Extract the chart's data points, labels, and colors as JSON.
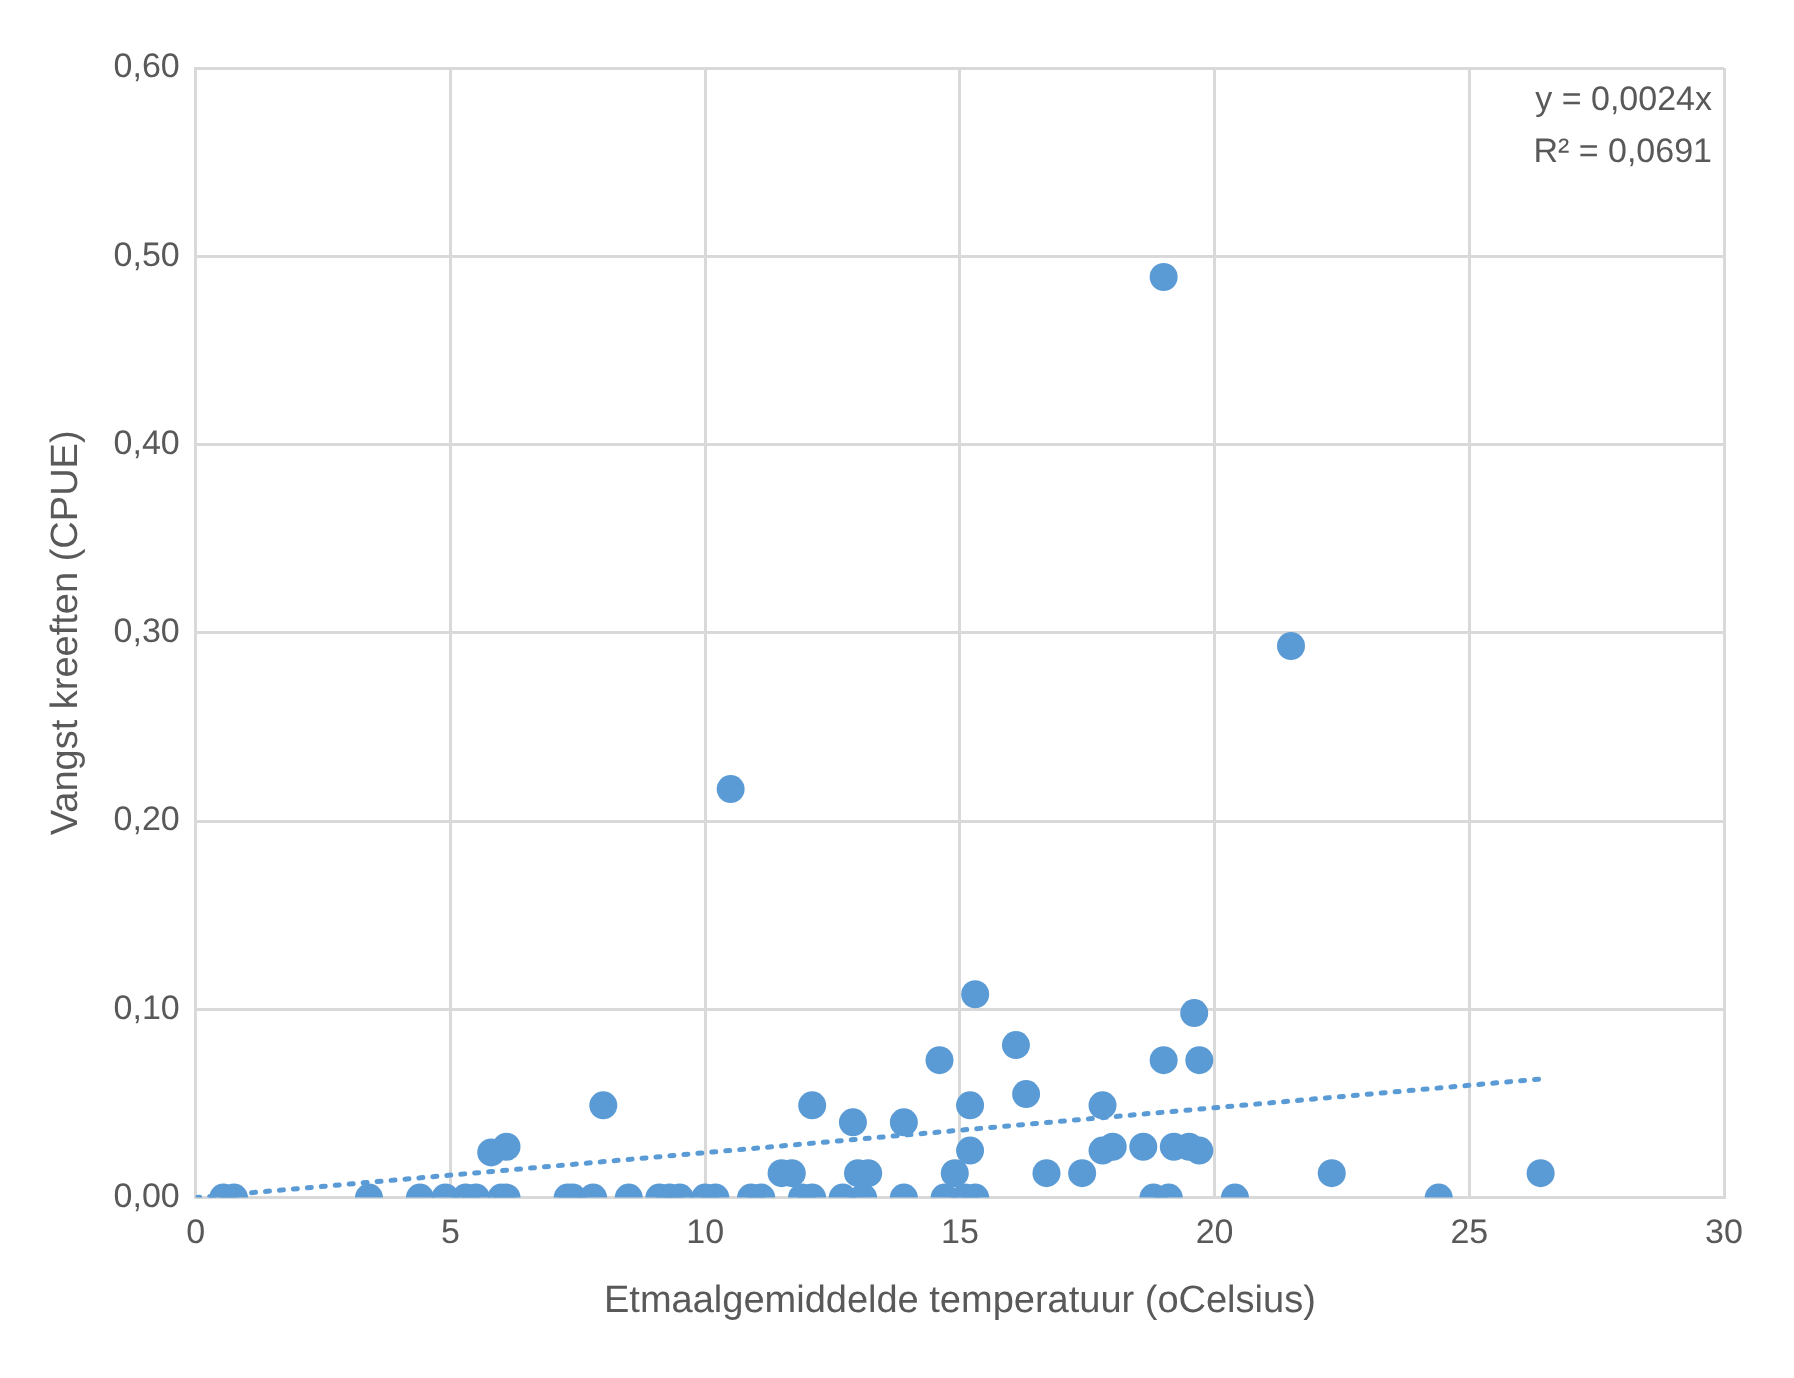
{
  "chart_data": {
    "type": "scatter",
    "xlabel": "Etmaalgemiddelde temperatuur (oCelsius)",
    "ylabel": "Vangst kreeften (CPUE)",
    "annotations": [
      "y = 0,0024x",
      "R² = 0,0691"
    ],
    "xlim": [
      0,
      30
    ],
    "xticks": [
      0,
      5,
      10,
      15,
      20,
      25,
      30
    ],
    "ylim": [
      0,
      0.6
    ],
    "yticks": [
      {
        "value": 0,
        "label": "0,00"
      },
      {
        "value": 0.1,
        "label": "0,10"
      },
      {
        "value": 0.2,
        "label": "0,20"
      },
      {
        "value": 0.3,
        "label": "0,30"
      },
      {
        "value": 0.4,
        "label": "0,40"
      },
      {
        "value": 0.5,
        "label": "0,50"
      },
      {
        "value": 0.6,
        "label": "0,60"
      }
    ],
    "grid": true,
    "legend": false,
    "series": [
      {
        "color": "#5b9bd5",
        "marker": "circle",
        "x": [
          0.54,
          0.75,
          3.4,
          4.4,
          4.9,
          5.3,
          5.5,
          5.8,
          6.1,
          6.0,
          6.1,
          7.3,
          7.4,
          7.8,
          8.0,
          8.5,
          9.1,
          9.3,
          9.5,
          10.0,
          10.2,
          10.5,
          10.9,
          11.1,
          11.5,
          11.7,
          11.9,
          12.1,
          12.1,
          12.7,
          12.9,
          13.0,
          13.2,
          13.1,
          13.9,
          13.9,
          14.6,
          14.7,
          14.9,
          15.1,
          15.3,
          15.2,
          15.2,
          15.3,
          16.1,
          16.3,
          16.7,
          17.4,
          17.8,
          17.8,
          18.0,
          18.6,
          18.8,
          19.0,
          19.1,
          19.0,
          19.2,
          19.5,
          19.6,
          19.7,
          19.7,
          20.4,
          21.5,
          22.3,
          24.4,
          26.4
        ],
        "values": [
          0,
          0,
          0,
          0,
          0,
          0,
          0,
          0.024,
          0.027,
          0,
          0,
          0,
          0,
          0,
          0.049,
          0,
          0,
          0,
          0,
          0,
          0,
          0.217,
          0,
          0,
          0.013,
          0.013,
          0,
          0,
          0.049,
          0,
          0.04,
          0.013,
          0.013,
          0,
          0,
          0.04,
          0.073,
          0,
          0.013,
          0,
          0,
          0.025,
          0.049,
          0.108,
          0.081,
          0.055,
          0.013,
          0.013,
          0.049,
          0.025,
          0.027,
          0.027,
          0,
          0.489,
          0,
          0.073,
          0.027,
          0.027,
          0.098,
          0.073,
          0.025,
          0,
          0.293,
          0.013,
          0,
          0.013
        ]
      },
      {
        "type": "line",
        "color": "#5b9bd5",
        "marker": "none",
        "line_style": "dotted",
        "x": [
          0,
          26.4
        ],
        "values": [
          0,
          0.063
        ]
      }
    ]
  }
}
